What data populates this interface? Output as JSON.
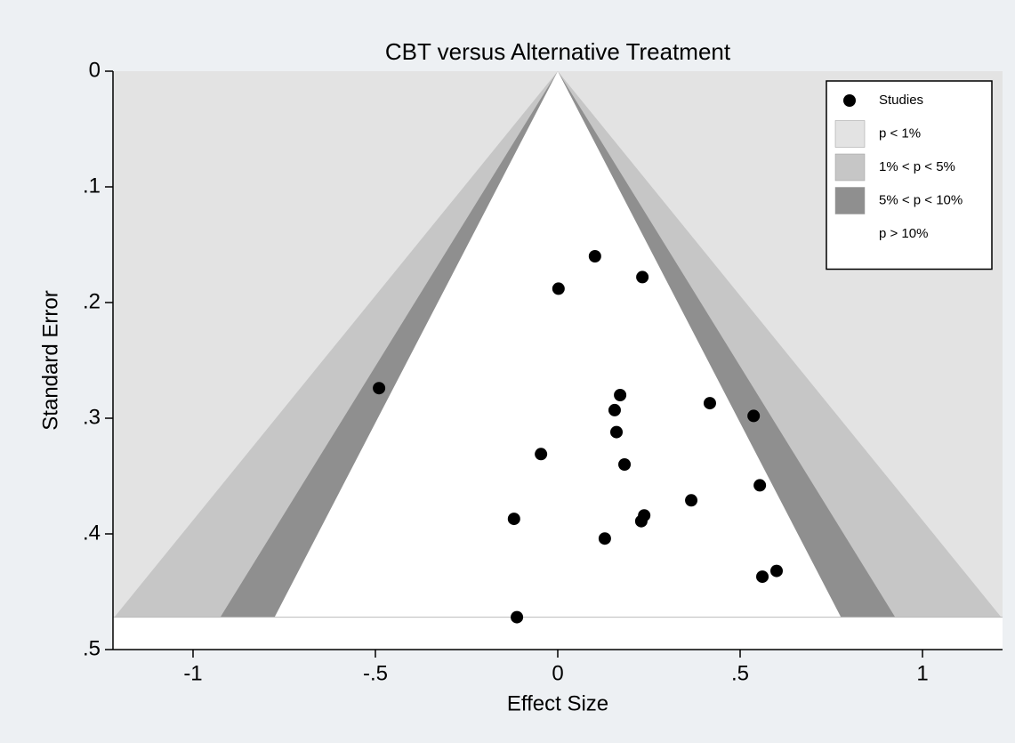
{
  "chart_data": {
    "type": "funnel",
    "title": "CBT versus Alternative Treatment",
    "x_label": "Effect Size",
    "y_label": "Standard Error",
    "x": [
      0.102,
      0.232,
      0.002,
      -0.49,
      0.171,
      0.417,
      0.156,
      0.537,
      0.161,
      -0.046,
      0.183,
      0.554,
      0.366,
      -0.12,
      0.237,
      0.229,
      0.129,
      0.6,
      0.561,
      -0.112
    ],
    "series": [
      {
        "name": "Studies",
        "color": "#000000",
        "values": [
          0.16,
          0.178,
          0.188,
          0.274,
          0.28,
          0.287,
          0.293,
          0.298,
          0.312,
          0.331,
          0.34,
          0.358,
          0.371,
          0.387,
          0.384,
          0.389,
          0.404,
          0.432,
          0.437,
          0.472
        ]
      }
    ],
    "contours": [
      {
        "name": "p < 1%",
        "color": "#e3e3e3",
        "z": 2.576
      },
      {
        "name": "1% < p < 5%",
        "color": "#c6c6c6",
        "z": 1.96
      },
      {
        "name": "5% < p < 10%",
        "color": "#8f8f8f",
        "z": 1.645
      },
      {
        "name": "p > 10%",
        "color": "#ffffff"
      }
    ],
    "xlim": [
      -1.2195,
      1.2195
    ],
    "xticks": [
      -1,
      {
        "value": -0.5,
        "label": "-.5"
      },
      0,
      {
        "value": 0.5,
        "label": ".5"
      },
      1
    ],
    "ylim": [
      0,
      0.5
    ],
    "y_reversed": true,
    "yticks": [
      0,
      {
        "value": 0.1,
        "label": ".1"
      },
      {
        "value": 0.2,
        "label": ".2"
      },
      {
        "value": 0.3,
        "label": ".3"
      },
      {
        "value": 0.4,
        "label": ".4"
      },
      {
        "value": 0.5,
        "label": ".5"
      }
    ],
    "legend": "top-right"
  }
}
